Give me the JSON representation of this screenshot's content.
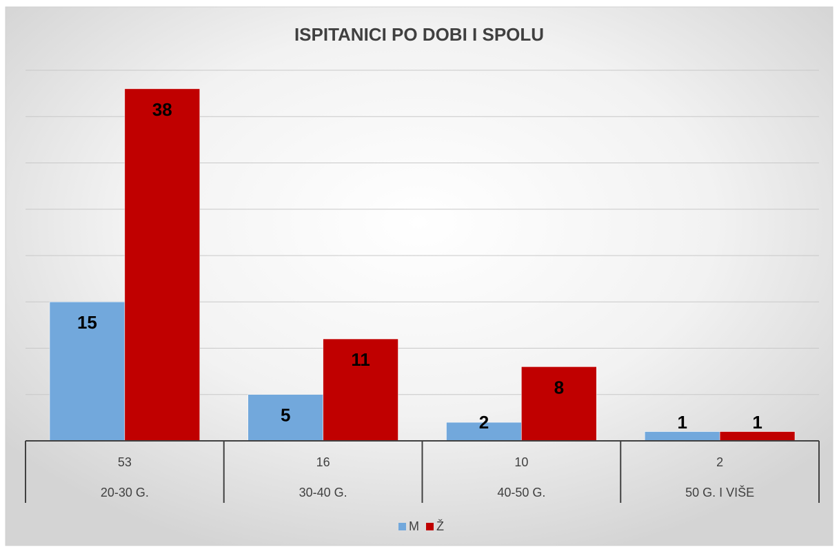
{
  "chart_data": {
    "type": "bar",
    "title": "ISPITANICI PO DOBI I SPOLU",
    "categories": [
      "20-30 G.",
      "30-40 G.",
      "40-50 G.",
      "50 G. I VIŠE"
    ],
    "category_totals": [
      53,
      16,
      10,
      2
    ],
    "series": [
      {
        "name": "M",
        "color": "#72a8dc",
        "values": [
          15,
          5,
          2,
          1
        ]
      },
      {
        "name": "Ž",
        "color": "#c00000",
        "values": [
          38,
          11,
          8,
          1
        ]
      }
    ],
    "ylim": [
      0,
      40
    ],
    "yticks": [
      0,
      5,
      10,
      15,
      20,
      25,
      30,
      35,
      40
    ],
    "grid": true,
    "legend": "bottom"
  }
}
